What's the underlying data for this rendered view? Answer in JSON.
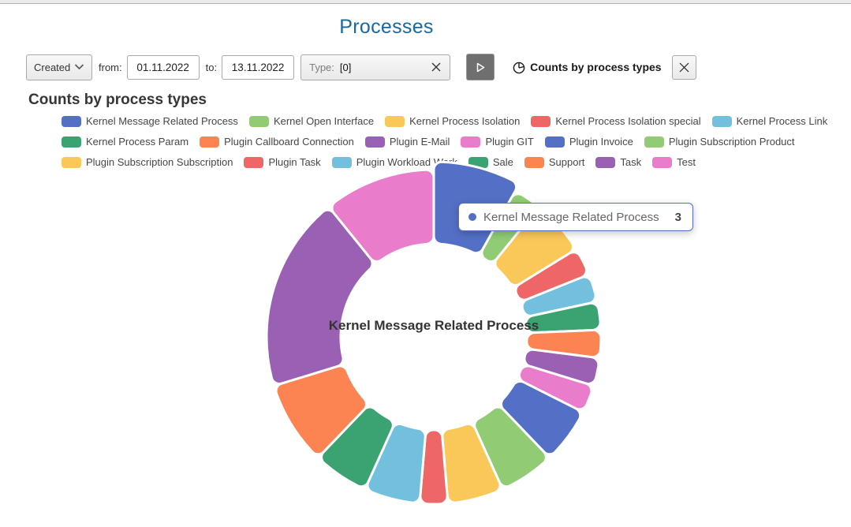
{
  "app": {
    "title": "Processes",
    "accent_color": "#17699f"
  },
  "toolbar": {
    "field_select": {
      "value": "Created"
    },
    "from_label": "from:",
    "from_date": "01.11.2022",
    "to_label": "to:",
    "to_date": "13.11.2022",
    "type_filter": {
      "label": "Type:",
      "value": "[0]"
    },
    "chart_label": "Counts by process types"
  },
  "section_heading": "Counts by process types",
  "chart_data": {
    "type": "pie",
    "title": "Counts by process types",
    "legend_position": "top",
    "categories": [
      "Kernel Message Related Process",
      "Kernel Open Interface",
      "Kernel Process Isolation",
      "Kernel Process Isolation special",
      "Kernel Process Link",
      "Kernel Process Param",
      "Plugin Callboard Connection",
      "Plugin E-Mail",
      "Plugin GIT",
      "Plugin Invoice",
      "Plugin Subscription Product",
      "Plugin Subscription Subscription",
      "Plugin Task",
      "Plugin Workload Work",
      "Sale",
      "Support",
      "Task",
      "Test"
    ],
    "values": [
      3,
      1,
      2,
      1,
      1,
      1,
      1,
      1,
      1,
      2,
      2,
      2,
      1,
      2,
      2,
      3,
      7,
      4
    ],
    "palette": [
      "#5470c6",
      "#91cc75",
      "#fac858",
      "#ee6666",
      "#73c0de",
      "#3ba272",
      "#fc8452",
      "#9a60b4",
      "#ea7ccc"
    ],
    "legend_rows": [
      [
        0,
        1,
        2,
        3,
        4
      ],
      [
        5,
        6,
        7,
        8,
        9,
        10
      ],
      [
        11,
        12,
        13,
        14,
        15,
        16,
        17
      ]
    ],
    "donut": {
      "inner_radius": 118,
      "outer_radius": 212,
      "hovered_index": 0,
      "hover_outer_radius": 222,
      "corner_radius": 10,
      "border_color": "#ffffff",
      "border_width": 3,
      "start_angle_deg": 0
    },
    "center_label": "Kernel Message Related Process",
    "tooltip": {
      "label": "Kernel Message Related Process",
      "value": 3
    }
  }
}
